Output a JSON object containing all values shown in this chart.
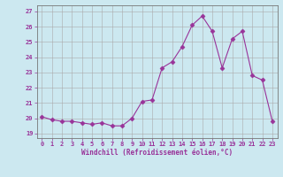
{
  "x": [
    0,
    1,
    2,
    3,
    4,
    5,
    6,
    7,
    8,
    9,
    10,
    11,
    12,
    13,
    14,
    15,
    16,
    17,
    18,
    19,
    20,
    21,
    22,
    23
  ],
  "y": [
    20.1,
    19.9,
    19.8,
    19.8,
    19.7,
    19.6,
    19.7,
    19.5,
    19.5,
    20.0,
    21.1,
    21.2,
    23.3,
    23.7,
    24.7,
    26.1,
    26.7,
    25.7,
    23.3,
    25.2,
    25.7,
    22.8,
    22.5,
    19.8
  ],
  "line_color": "#993399",
  "marker_size": 2.5,
  "bg_color": "#cce8f0",
  "grid_color": "#aaaaaa",
  "ylabel_ticks": [
    19,
    20,
    21,
    22,
    23,
    24,
    25,
    26,
    27
  ],
  "xlabel": "Windchill (Refroidissement éolien,°C)",
  "xlim": [
    -0.5,
    23.5
  ],
  "ylim": [
    18.7,
    27.4
  ],
  "tick_color": "#993399",
  "label_color": "#993399",
  "tick_fontsize": 5.0,
  "xlabel_fontsize": 5.5
}
